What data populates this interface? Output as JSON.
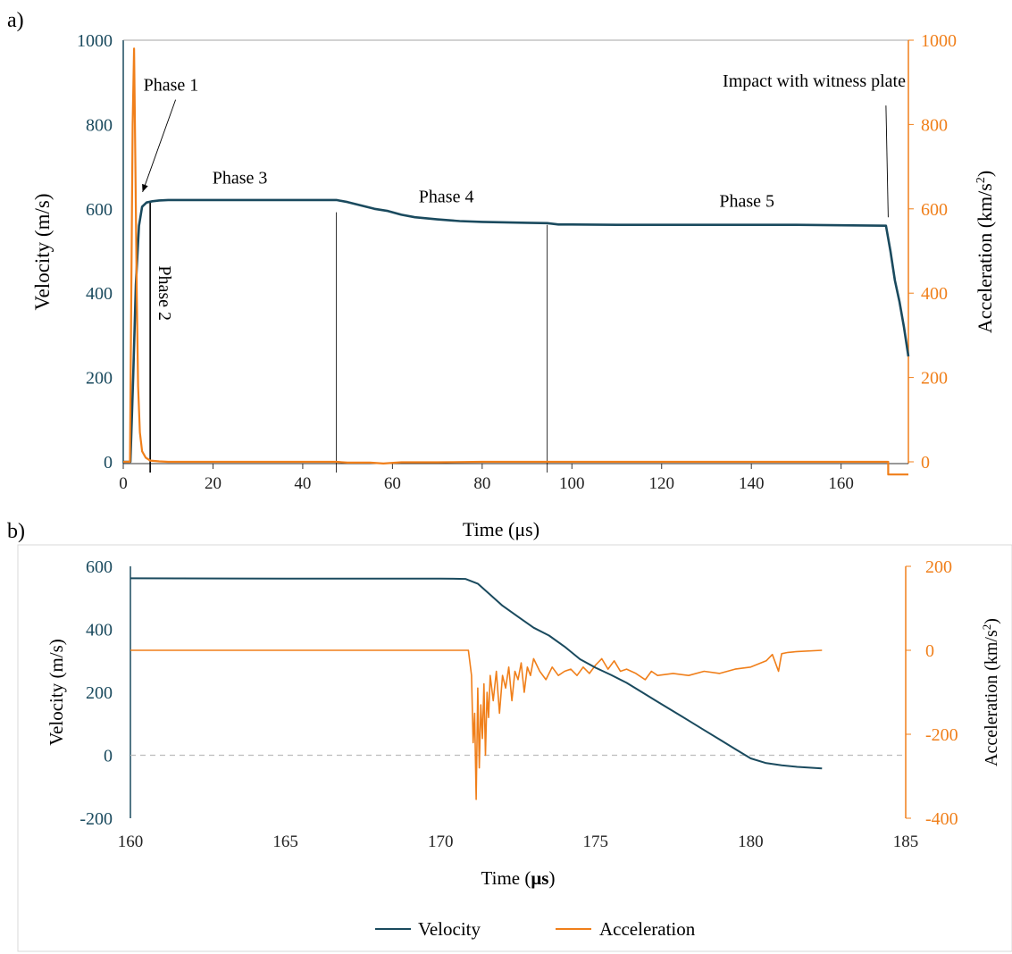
{
  "colors": {
    "velocity": "#1a4a5e",
    "acceleration": "#f07f1a",
    "annotation": "#000000",
    "zero_line": "#bdbdbd"
  },
  "chart_data": [
    {
      "panel_label": "a)",
      "type": "line",
      "xlabel": "Time  (μs)",
      "ylabel_left": "Velocity (m/s)",
      "ylabel_right": "Acceleration (km/s",
      "ylabel_right_sup": "2",
      "ylabel_right_tail": ")",
      "xlim": [
        0,
        175
      ],
      "ylim_left": [
        0,
        1000
      ],
      "ylim_right": [
        0,
        1000
      ],
      "x_ticks": [
        0,
        20,
        40,
        60,
        80,
        100,
        120,
        140,
        160
      ],
      "y_ticks_left": [
        0,
        200,
        400,
        600,
        800,
        1000
      ],
      "y_ticks_right": [
        0,
        200,
        400,
        600,
        800,
        1000
      ],
      "grid": false,
      "phase_lines": [
        6,
        47.5,
        94.5
      ],
      "annotations": [
        {
          "id": "phase1",
          "text": "Phase 1",
          "x": 4.5,
          "y": 880,
          "arrow_to": [
            4.3,
            640
          ]
        },
        {
          "id": "phase2",
          "text": "Phase 2",
          "x": 8,
          "y": 400,
          "rotated": true
        },
        {
          "id": "phase3",
          "text": "Phase 3",
          "x": 26,
          "y": 660
        },
        {
          "id": "phase4",
          "text": "Phase 4",
          "x": 72,
          "y": 615
        },
        {
          "id": "phase5",
          "text": "Phase 5",
          "x": 139,
          "y": 605
        },
        {
          "id": "impact",
          "text": "Impact with witness plate",
          "x": 154,
          "y": 890,
          "arrow_to": [
            170.5,
            580
          ],
          "arrow_from": [
            170.0,
            845
          ]
        }
      ],
      "series": [
        {
          "name": "Velocity",
          "axis": "left",
          "x": [
            0,
            1.6,
            2.2,
            2.8,
            3.5,
            4.2,
            5.2,
            6.5,
            8,
            10,
            20,
            30,
            40,
            47.5,
            50,
            53,
            56,
            59,
            62,
            65,
            70,
            75,
            80,
            85,
            90,
            94.5,
            97,
            100,
            110,
            120,
            130,
            140,
            150,
            160,
            170,
            171,
            172,
            173,
            174,
            175
          ],
          "values": [
            0,
            0,
            200,
            420,
            560,
            605,
            615,
            618,
            620,
            621,
            621,
            621,
            621,
            621,
            616,
            608,
            600,
            595,
            586,
            580,
            575,
            571,
            569,
            568,
            567,
            566,
            563,
            563,
            562,
            562,
            562,
            562,
            562,
            561,
            560,
            500,
            430,
            380,
            320,
            250
          ]
        },
        {
          "name": "Acceleration",
          "axis": "right",
          "x": [
            0,
            1.5,
            1.8,
            2.1,
            2.4,
            2.7,
            3.0,
            3.3,
            3.7,
            4.2,
            5.0,
            6.0,
            8,
            10,
            20,
            40,
            47.5,
            50,
            55,
            58,
            62,
            70,
            80,
            94.5,
            100,
            110,
            120,
            140,
            160,
            170.2,
            170.5,
            170.5,
            175
          ],
          "values": [
            0,
            0,
            400,
            800,
            980,
            700,
            400,
            180,
            70,
            25,
            10,
            3,
            1,
            0,
            0,
            0,
            0,
            -2,
            -2,
            -4,
            -1,
            -1,
            0,
            0,
            0,
            0,
            0,
            0,
            0,
            0,
            0,
            -30,
            -30
          ]
        }
      ]
    },
    {
      "panel_label": "b)",
      "type": "line",
      "xlabel_main": "Time (",
      "xlabel_unit": "μs",
      "xlabel_tail": ")",
      "ylabel_left": "Velocity (m/s)",
      "ylabel_right": "Acceleration (km/s",
      "ylabel_right_sup": "2",
      "ylabel_right_tail": ")",
      "xlim": [
        160,
        185
      ],
      "ylim_left": [
        -200,
        600
      ],
      "ylim_right": [
        -400,
        200
      ],
      "x_ticks": [
        160,
        165,
        170,
        175,
        180,
        185
      ],
      "y_ticks_left": [
        -200,
        0,
        200,
        400,
        600
      ],
      "y_ticks_left_labels": [
        "-200",
        "0",
        "200",
        "400",
        "600"
      ],
      "y_ticks_right": [
        -400,
        -200,
        0,
        200
      ],
      "y_ticks_right_labels": [
        "-400",
        "-200",
        "0",
        "200"
      ],
      "grid": false,
      "zero_line": 0,
      "legend": {
        "position": "bottom-center",
        "entries": [
          "Velocity",
          "Acceleration"
        ]
      },
      "series": [
        {
          "name": "Velocity",
          "axis": "left",
          "x": [
            160,
            165,
            170,
            170.8,
            171.2,
            171.6,
            172.0,
            172.5,
            173.0,
            173.5,
            174.0,
            174.5,
            175.0,
            175.5,
            176.0,
            176.5,
            177.0,
            177.5,
            178.0,
            178.5,
            179.0,
            179.5,
            180.0,
            180.5,
            181.0,
            181.5,
            182.3
          ],
          "values": [
            562,
            561,
            561,
            560,
            545,
            510,
            475,
            440,
            405,
            380,
            345,
            305,
            278,
            255,
            230,
            200,
            170,
            140,
            110,
            80,
            50,
            20,
            -10,
            -25,
            -32,
            -37,
            -42
          ]
        },
        {
          "name": "Acceleration",
          "axis": "right",
          "x": [
            160,
            165,
            170,
            170.9,
            171.0,
            171.05,
            171.1,
            171.15,
            171.2,
            171.25,
            171.3,
            171.35,
            171.4,
            171.45,
            171.5,
            171.55,
            171.6,
            171.7,
            171.8,
            171.9,
            172.0,
            172.1,
            172.2,
            172.3,
            172.4,
            172.5,
            172.6,
            172.7,
            172.8,
            172.9,
            173.0,
            173.2,
            173.4,
            173.6,
            173.8,
            174.0,
            174.2,
            174.4,
            174.6,
            174.8,
            175.0,
            175.2,
            175.4,
            175.6,
            175.8,
            176.0,
            176.3,
            176.6,
            176.8,
            177.0,
            177.5,
            178.0,
            178.5,
            179.0,
            179.5,
            180.0,
            180.5,
            180.7,
            180.9,
            181.0,
            181.2,
            181.5,
            182.3
          ],
          "values": [
            0,
            0,
            0,
            0,
            -60,
            -220,
            -150,
            -355,
            -90,
            -280,
            -130,
            -210,
            -80,
            -250,
            -100,
            -160,
            -60,
            -120,
            -50,
            -150,
            -60,
            -90,
            -40,
            -120,
            -50,
            -70,
            -30,
            -100,
            -40,
            -60,
            -20,
            -50,
            -70,
            -40,
            -60,
            -50,
            -45,
            -60,
            -40,
            -55,
            -35,
            -20,
            -45,
            -25,
            -50,
            -45,
            -55,
            -70,
            -50,
            -60,
            -55,
            -60,
            -50,
            -55,
            -45,
            -40,
            -25,
            -10,
            -50,
            -8,
            -5,
            -3,
            0
          ]
        }
      ]
    }
  ]
}
